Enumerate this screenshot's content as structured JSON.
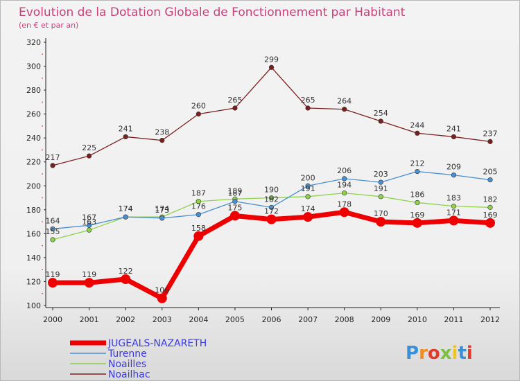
{
  "chart_data": {
    "type": "line",
    "title": "Evolution de la Dotation Globale de Fonctionnement par Habitant",
    "subtitle": "(en € et par an)",
    "xlabel": "",
    "ylabel": "",
    "x": [
      "2000",
      "2001",
      "2002",
      "2003",
      "2004",
      "2005",
      "2006",
      "2007",
      "2008",
      "2009",
      "2010",
      "2011",
      "2012"
    ],
    "ylim": [
      100,
      320
    ],
    "yticks": [
      100,
      120,
      140,
      160,
      180,
      200,
      220,
      240,
      260,
      280,
      300,
      320
    ],
    "grid": false,
    "series": [
      {
        "name": "Noailhac",
        "color": "#7a1e1e",
        "values": [
          217,
          225,
          241,
          238,
          260,
          265,
          299,
          265,
          264,
          254,
          244,
          241,
          237
        ]
      },
      {
        "name": "Noailles",
        "color": "#8fd24a",
        "values": [
          155,
          163,
          174,
          174,
          187,
          189,
          190,
          191,
          194,
          191,
          186,
          183,
          182
        ]
      },
      {
        "name": "Turenne",
        "color": "#4a8fd0",
        "values": [
          164,
          167,
          174,
          173,
          176,
          187,
          182,
          200,
          206,
          203,
          212,
          209,
          205
        ]
      },
      {
        "name": "JUGEALS-NAZARETH",
        "color": "#ee0000",
        "values": [
          119,
          119,
          122,
          106,
          158,
          175,
          172,
          174,
          178,
          170,
          169,
          171,
          169
        ]
      }
    ],
    "legend": {
      "position": "bottom-left",
      "entries": [
        "JUGEALS-NAZARETH",
        "Turenne",
        "Noailles",
        "Noailhac"
      ]
    }
  },
  "brand": {
    "text": "Proxiti",
    "letters": [
      "P",
      "r",
      "o",
      "x",
      "i",
      "t",
      "i"
    ],
    "colors": [
      "#3a8fd8",
      "#f28c1e",
      "#e23b2e",
      "#7bc043",
      "#f2c21e",
      "#3a8fd8",
      "#e23b2e"
    ]
  }
}
